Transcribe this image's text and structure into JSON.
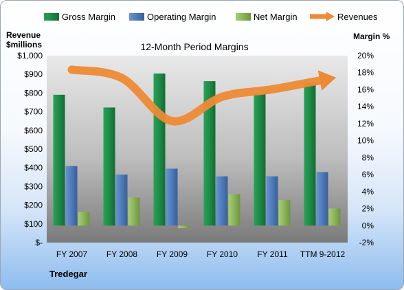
{
  "chart_data": {
    "type": "bar",
    "title": "12-Month Period Margins",
    "company": "Tredegar",
    "categories": [
      "FY 2007",
      "FY 2008",
      "FY 2009",
      "FY 2010",
      "FY 2011",
      "TTM 9-2012"
    ],
    "series": [
      {
        "name": "Gross Margin",
        "axis": "right",
        "type": "bar",
        "color": "#1e8c46",
        "values": [
          15.4,
          13.9,
          17.9,
          17.0,
          15.5,
          16.8
        ]
      },
      {
        "name": "Operating Margin",
        "axis": "right",
        "type": "bar",
        "color": "#4f7ec0",
        "values": [
          7.0,
          6.0,
          6.7,
          5.8,
          5.8,
          6.3
        ]
      },
      {
        "name": "Net Margin",
        "axis": "right",
        "type": "bar",
        "color": "#8db85a",
        "values": [
          1.6,
          3.3,
          -0.3,
          3.7,
          3.0,
          2.0
        ]
      },
      {
        "name": "Revenues",
        "axis": "left",
        "type": "line",
        "color": "#ee8a35",
        "values": [
          925,
          880,
          650,
          780,
          820,
          870
        ]
      }
    ],
    "y_left": {
      "label_line1": "Revenue",
      "label_line2": "$millions",
      "range": [
        0,
        1000
      ],
      "ticks": [
        "$-",
        "$100",
        "$200",
        "$300",
        "$400",
        "$500",
        "$600",
        "$700",
        "$800",
        "$900",
        "$1,000"
      ]
    },
    "y_right": {
      "label": "Margin %",
      "range": [
        -2,
        20
      ],
      "ticks": [
        "-2%",
        "0%",
        "2%",
        "4%",
        "6%",
        "8%",
        "10%",
        "12%",
        "14%",
        "16%",
        "18%",
        "20%"
      ]
    },
    "legend_position": "top",
    "grid": false
  }
}
